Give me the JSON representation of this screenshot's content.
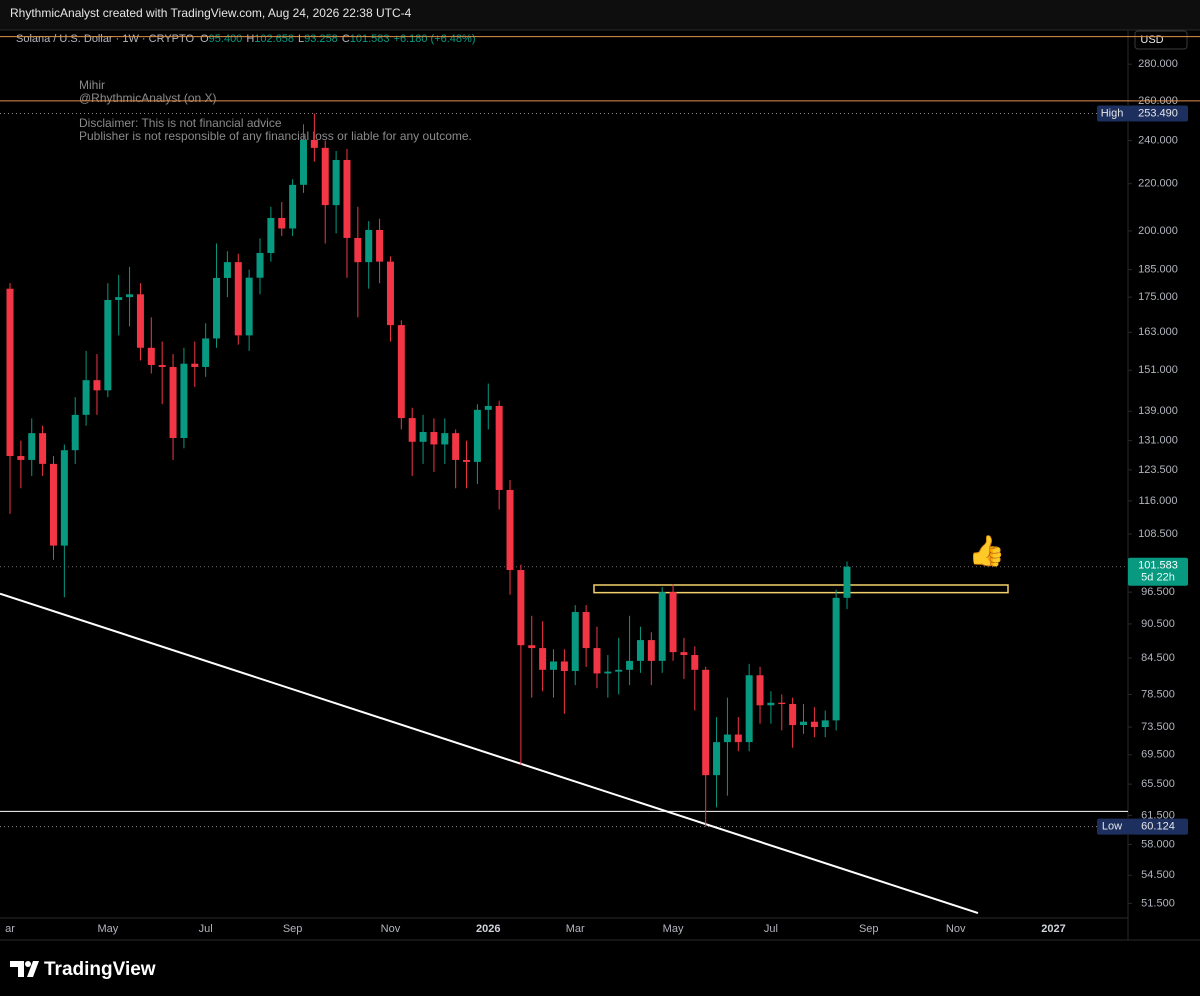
{
  "header": "RhythmicAnalyst created with TradingView.com, Aug 24, 2026 22:38 UTC-4",
  "brand": "TradingView",
  "chart_data": {
    "type": "candlestick",
    "legend": {
      "symbol": "Solana / U.S. Dollar · 1W · CRYPTO",
      "items": [
        {
          "key": "O",
          "label": "95.400"
        },
        {
          "key": "H",
          "label": "102.658"
        },
        {
          "key": "L",
          "label": "93.258"
        },
        {
          "key": "C",
          "label": "101.583"
        }
      ],
      "change": "+6.180 (+6.48%)"
    },
    "notes": [
      "Mihir",
      "@RhythmicAnalyst (on X)",
      "Disclaimer: This is not financial advice",
      "Publisher is not responsible of any financial loss or liable for any outcome."
    ],
    "currency": "USD",
    "icon": "👍",
    "up_color": "#089981",
    "down_color": "#f23645",
    "categories": [
      "ar",
      null,
      null,
      null,
      null,
      null,
      null,
      null,
      null,
      "May",
      null,
      null,
      null,
      null,
      null,
      null,
      null,
      null,
      "Jul",
      null,
      null,
      null,
      null,
      null,
      null,
      null,
      "Sep",
      null,
      null,
      null,
      null,
      null,
      null,
      null,
      null,
      "Nov",
      null,
      null,
      null,
      null,
      null,
      null,
      null,
      null,
      "2026",
      null,
      null,
      null,
      null,
      null,
      null,
      null,
      "Mar",
      null,
      null,
      null,
      null,
      null,
      null,
      null,
      null,
      "May",
      null,
      null,
      null,
      null,
      null,
      null,
      null,
      null,
      "Jul",
      null,
      null,
      null,
      null,
      null,
      null,
      null,
      null,
      "Sep",
      null,
      null,
      null,
      null,
      null,
      null,
      null,
      "Nov",
      null,
      null,
      null,
      null,
      null,
      null,
      null,
      null,
      "2027",
      null,
      null,
      null,
      null,
      null,
      null
    ],
    "open": [
      178,
      127,
      126,
      133,
      125,
      106,
      128.5,
      138,
      148,
      145,
      174,
      175,
      176,
      158,
      152.6,
      152,
      131.7,
      153,
      152,
      161,
      181.9,
      187.8,
      162,
      182,
      191.3,
      205.3,
      201,
      219.5,
      240.3,
      236.5,
      210.7,
      230.8,
      197.2,
      187.8,
      200.4,
      188,
      165.4,
      137.1,
      130.7,
      133.3,
      130,
      133,
      126,
      125.5,
      139.4,
      140.5,
      118.6,
      100.9,
      86.7,
      86.2,
      82.5,
      83.9,
      82.3,
      92.7,
      86.2,
      81.9,
      82.2,
      82.5,
      84,
      87.6,
      84,
      96.5,
      85.5,
      85,
      82.5,
      66.7,
      71.3,
      72.4,
      71.3,
      81.6,
      76.8,
      77.2,
      77,
      73.8,
      74.3,
      73.5,
      74.5,
      95.4,
      null,
      null,
      null,
      null,
      null,
      null,
      null,
      null,
      null,
      null,
      null,
      null,
      null,
      null,
      null,
      null,
      null,
      null,
      null,
      null,
      null,
      null,
      null,
      null,
      null
    ],
    "high": [
      180,
      131,
      137,
      135,
      127,
      130,
      143,
      157,
      156,
      180,
      183,
      186,
      180,
      168,
      160,
      156,
      158,
      160,
      166,
      195,
      192,
      191,
      185,
      197,
      210,
      212,
      222,
      248,
      253.49,
      240,
      235,
      236,
      210,
      204,
      205,
      190,
      167,
      140,
      138,
      137,
      137,
      134,
      131,
      141,
      147,
      142,
      121,
      102,
      92,
      91,
      86,
      86,
      94,
      94,
      90,
      85,
      88,
      92,
      90,
      89,
      97.5,
      98,
      88,
      86.5,
      83,
      75,
      78,
      75,
      83.5,
      83,
      79,
      78.5,
      78,
      77,
      76.5,
      76,
      97,
      102.658,
      null,
      null,
      null,
      null,
      null,
      null,
      null,
      null,
      null,
      null,
      null,
      null,
      null,
      null,
      null,
      null,
      null,
      null,
      null,
      null,
      null,
      null,
      null,
      null,
      null
    ],
    "low": [
      113,
      119,
      122,
      122,
      103,
      95.5,
      125,
      135,
      138,
      143,
      162,
      165,
      154,
      150,
      141,
      126,
      129,
      146,
      149,
      158,
      175,
      159,
      157,
      176,
      188,
      198,
      198,
      216,
      230,
      195,
      199,
      182,
      168,
      178,
      180,
      160,
      134,
      122,
      125,
      123,
      125,
      119,
      119,
      120,
      134,
      114,
      96,
      68.1,
      78,
      79,
      78,
      75.5,
      80,
      83,
      79.5,
      78,
      78.5,
      80,
      82,
      80,
      82,
      84,
      81,
      76,
      60.124,
      62.5,
      64,
      70,
      70,
      74,
      74,
      73,
      70.5,
      72.5,
      72,
      72,
      73,
      93.258,
      null,
      null,
      null,
      null,
      null,
      null,
      null,
      null,
      null,
      null,
      null,
      null,
      null,
      null,
      null,
      null,
      null,
      null,
      null,
      null,
      null,
      null,
      null,
      null,
      null
    ],
    "close": [
      127,
      126,
      133,
      125,
      106,
      128.5,
      138,
      148,
      145,
      174,
      175,
      176,
      158,
      152.6,
      152,
      131.7,
      153,
      152,
      161,
      181.9,
      187.8,
      162,
      182,
      191.3,
      205.3,
      201,
      219.5,
      240.3,
      236.5,
      210.7,
      230.8,
      197.2,
      187.8,
      200.4,
      188,
      165.4,
      137.1,
      130.7,
      133.3,
      130,
      133,
      126,
      125.5,
      139.4,
      140.5,
      118.6,
      100.9,
      86.7,
      86.2,
      82.5,
      83.9,
      82.3,
      92.7,
      86.2,
      81.9,
      82.2,
      82.5,
      84,
      87.6,
      84,
      96.5,
      85.5,
      85,
      82.5,
      66.7,
      71.3,
      72.4,
      71.3,
      81.6,
      76.8,
      77.2,
      77,
      73.8,
      74.3,
      73.5,
      74.5,
      95.4,
      101.583,
      null,
      null,
      null,
      null,
      null,
      null,
      null,
      null,
      null,
      null,
      null,
      null,
      null,
      null,
      null,
      null,
      null,
      null,
      null,
      null,
      null,
      null,
      null,
      null,
      null
    ],
    "yscale": "log",
    "ylim": [
      50,
      300
    ],
    "yticks": [
      {
        "value": 280,
        "label": "280.000"
      },
      {
        "value": 260,
        "label": "260.000"
      },
      {
        "value": 240,
        "label": "240.000"
      },
      {
        "value": 220,
        "label": "220.000"
      },
      {
        "value": 200,
        "label": "200.000"
      },
      {
        "value": 185,
        "label": "185.000"
      },
      {
        "value": 175,
        "label": "175.000"
      },
      {
        "value": 163,
        "label": "163.000"
      },
      {
        "value": 151,
        "label": "151.000"
      },
      {
        "value": 139,
        "label": "139.000"
      },
      {
        "value": 131,
        "label": "131.000"
      },
      {
        "value": 123.5,
        "label": "123.500"
      },
      {
        "value": 116,
        "label": "116.000"
      },
      {
        "value": 108.5,
        "label": "108.500"
      },
      {
        "value": 96.5,
        "label": "96.500"
      },
      {
        "value": 90.5,
        "label": "90.500"
      },
      {
        "value": 84.5,
        "label": "84.500"
      },
      {
        "value": 78.5,
        "label": "78.500"
      },
      {
        "value": 73.5,
        "label": "73.500"
      },
      {
        "value": 69.5,
        "label": "69.500"
      },
      {
        "value": 65.5,
        "label": "65.500"
      },
      {
        "value": 61.5,
        "label": "61.500"
      },
      {
        "value": 58,
        "label": "58.000"
      },
      {
        "value": 54.5,
        "label": "54.500"
      },
      {
        "value": 51.5,
        "label": "51.500"
      }
    ],
    "grid": false,
    "hlines": [
      {
        "value": 296,
        "color": "#e0904a"
      },
      {
        "value": 260,
        "color": "#e0904a"
      },
      {
        "value": 62,
        "color": "#ffffff"
      }
    ],
    "trendline": {
      "values": [
        96.2,
        50.5
      ],
      "color": "#ffffff"
    },
    "zone": {
      "values": [
        96.4,
        97.9
      ],
      "color": "#f2d16b"
    },
    "high_marker": {
      "label": "High",
      "value": 253.49,
      "value_label": "253.490"
    },
    "low_marker": {
      "label": "Low",
      "value": 60.124,
      "value_label": "60.124"
    },
    "last_price": {
      "value": 101.583,
      "value_label": "101.583",
      "countdown": "5d 22h"
    }
  }
}
